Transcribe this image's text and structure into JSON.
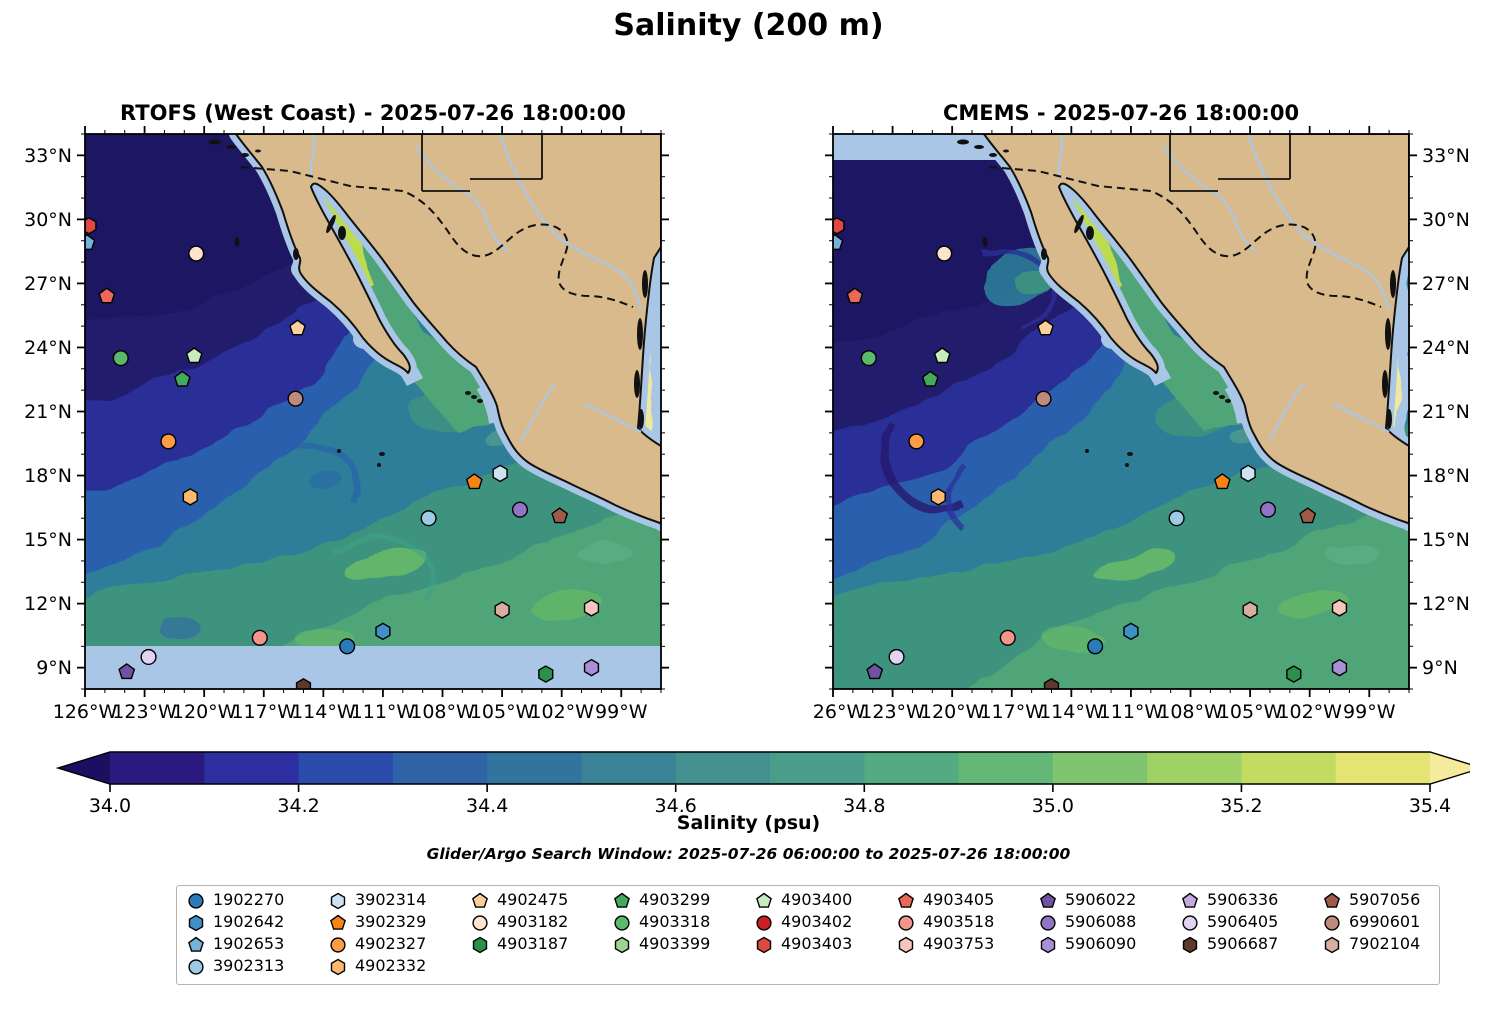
{
  "figure": {
    "title": "Salinity (200 m)",
    "note": "Glider/Argo Search Window: 2025-07-26 06:00:00 to 2025-07-26 18:00:00"
  },
  "panels": [
    {
      "title": "RTOFS (West Coast) - 2025-07-26 18:00:00",
      "lat_label_side": "left",
      "nodata_band": "bottom"
    },
    {
      "title": "CMEMS - 2025-07-26 18:00:00",
      "lat_label_side": "right",
      "nodata_band": "top"
    }
  ],
  "axes": {
    "lon_min": -126,
    "lon_max": -97,
    "lat_min": 8,
    "lat_max": 34,
    "lon_major_ticks": [
      -126,
      -123,
      -120,
      -117,
      -114,
      -111,
      -108,
      -105,
      -102,
      -99
    ],
    "lon_tick_labels": [
      "126°W",
      "123°W",
      "120°W",
      "117°W",
      "114°W",
      "111°W",
      "108°W",
      "105°W",
      "102°W",
      "99°W"
    ],
    "lat_major_ticks": [
      33,
      30,
      27,
      24,
      21,
      18,
      15,
      12,
      9
    ],
    "lat_tick_labels": [
      "33°N",
      "30°N",
      "27°N",
      "24°N",
      "21°N",
      "18°N",
      "15°N",
      "12°N",
      "9°N"
    ],
    "minor_step_deg": 1
  },
  "map_colors": {
    "land": "#D9BA8C",
    "coastline": "#111111",
    "no_data": "#A9C6E6",
    "river": "#A8C8E8",
    "border": "#111111"
  },
  "chart_data": {
    "type": "heatmap",
    "title": "Salinity (200 m)",
    "panels": [
      "RTOFS (West Coast) - 2025-07-26 18:00:00",
      "CMEMS - 2025-07-26 18:00:00"
    ],
    "lon_range": [
      -126,
      -97
    ],
    "lat_range": [
      8,
      34
    ],
    "colorbar": {
      "label": "Salinity (psu)",
      "min": 34.0,
      "max": 35.4,
      "tick_labels": [
        "34.0",
        "34.2",
        "34.4",
        "34.6",
        "34.8",
        "35.0",
        "35.2",
        "35.4"
      ],
      "segment_colors": [
        "#2A1A7E",
        "#2D2FA0",
        "#2B4BAC",
        "#2E63A8",
        "#33749E",
        "#3A8396",
        "#429090",
        "#499D8A",
        "#54AA81",
        "#65B778",
        "#7FC46E",
        "#9ED166",
        "#C2DB60",
        "#E4E373"
      ],
      "under_color": "#1D0F60",
      "over_color": "#F4EC9C"
    },
    "platforms": [
      {
        "id": "1902270",
        "marker": "circle",
        "color": "#2B7BBA",
        "lon": -112.8,
        "lat": 10.0
      },
      {
        "id": "1902642",
        "marker": "hexagon",
        "color": "#4090C5",
        "lon": -111.0,
        "lat": 10.7
      },
      {
        "id": "1902653",
        "marker": "pentagon",
        "color": "#74B2D8",
        "lon": -125.9,
        "lat": 28.9
      },
      {
        "id": "3902313",
        "marker": "circle",
        "color": "#9CCBE3",
        "lon": -108.7,
        "lat": 16.0
      },
      {
        "id": "3902314",
        "marker": "hexagon",
        "color": "#CEE3F2",
        "lon": -105.1,
        "lat": 18.1
      },
      {
        "id": "3902329",
        "marker": "pentagon",
        "color": "#F98415",
        "lon": -106.4,
        "lat": 17.7
      },
      {
        "id": "4902327",
        "marker": "circle",
        "color": "#FD9C42",
        "lon": -121.8,
        "lat": 19.6
      },
      {
        "id": "4902332",
        "marker": "hexagon",
        "color": "#FDB96E",
        "lon": -120.7,
        "lat": 17.0
      },
      {
        "id": "4902475",
        "marker": "pentagon",
        "color": "#FCCF9E",
        "lon": -115.3,
        "lat": 24.9
      },
      {
        "id": "4903182",
        "marker": "circle",
        "color": "#FDE5CB",
        "lon": -120.4,
        "lat": 28.4
      },
      {
        "id": "4903187",
        "marker": "hexagon",
        "color": "#2A914B",
        "lon": -102.8,
        "lat": 8.7
      },
      {
        "id": "4903299",
        "marker": "pentagon",
        "color": "#45A95D",
        "lon": -121.1,
        "lat": 22.5
      },
      {
        "id": "4903318",
        "marker": "circle",
        "color": "#5BBA6A",
        "lon": -124.2,
        "lat": 23.5
      },
      {
        "id": "4903399",
        "marker": "hexagon",
        "color": "#9CD492"
      },
      {
        "id": "4903400",
        "marker": "pentagon",
        "color": "#C8EABF",
        "lon": -120.5,
        "lat": 23.6
      },
      {
        "id": "4903402",
        "marker": "circle",
        "color": "#CA1E24"
      },
      {
        "id": "4903403",
        "marker": "hexagon",
        "color": "#DE4A41",
        "lon": -125.8,
        "lat": 29.7
      },
      {
        "id": "4903405",
        "marker": "pentagon",
        "color": "#EA6857",
        "lon": -124.9,
        "lat": 26.4
      },
      {
        "id": "4903518",
        "marker": "circle",
        "color": "#F2958B",
        "lon": -117.2,
        "lat": 10.4
      },
      {
        "id": "4903753",
        "marker": "hexagon",
        "color": "#F8C4BD",
        "lon": -100.5,
        "lat": 11.8
      },
      {
        "id": "5906022",
        "marker": "pentagon",
        "color": "#7052A3",
        "lon": -123.9,
        "lat": 8.8
      },
      {
        "id": "5906088",
        "marker": "circle",
        "color": "#9274C6",
        "lon": -104.1,
        "lat": 16.4
      },
      {
        "id": "5906090",
        "marker": "hexagon",
        "color": "#A98FD6",
        "lon": -100.5,
        "lat": 9.0
      },
      {
        "id": "5906336",
        "marker": "pentagon",
        "color": "#C3ABE2"
      },
      {
        "id": "5906405",
        "marker": "circle",
        "color": "#E3D3F2",
        "lon": -122.8,
        "lat": 9.5
      },
      {
        "id": "5906687",
        "marker": "hexagon",
        "color": "#5E382D",
        "lon": -115.0,
        "lat": 8.1
      },
      {
        "id": "5907056",
        "marker": "pentagon",
        "color": "#9E5C48",
        "lon": -102.1,
        "lat": 16.1
      },
      {
        "id": "6990601",
        "marker": "circle",
        "color": "#BF8A7B",
        "lon": -115.4,
        "lat": 21.6
      },
      {
        "id": "7902104",
        "marker": "hexagon",
        "color": "#D8AE9E",
        "lon": -105.0,
        "lat": 11.7
      }
    ],
    "legend_column_sizes": [
      4,
      4,
      3,
      3,
      3,
      3,
      3,
      3,
      3
    ]
  }
}
